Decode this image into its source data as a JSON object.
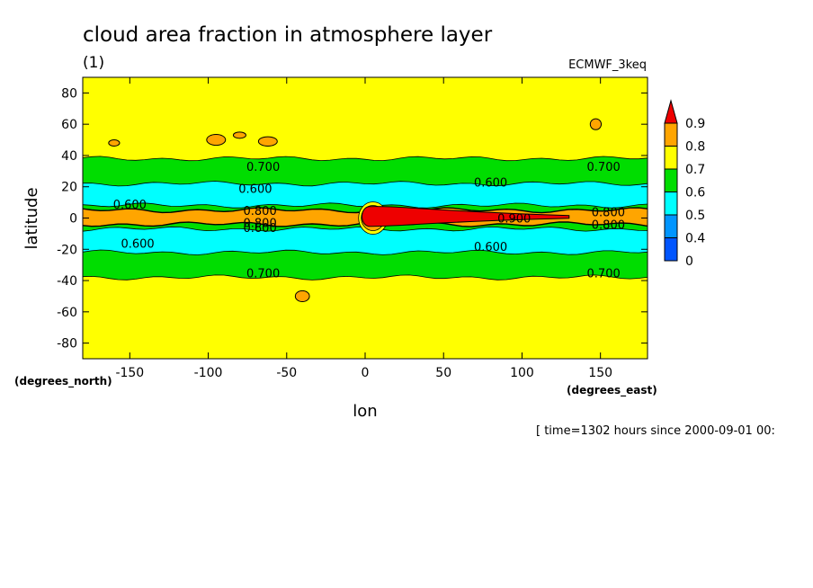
{
  "chart_data": {
    "type": "heatmap",
    "title": "cloud area fraction in atmosphere layer",
    "subtitle": "(1)",
    "source_label": "ECMWF_3keq",
    "xlabel": "lon",
    "ylabel": "latitude",
    "x_unit": "(degrees_east)",
    "y_unit": "(degrees_north)",
    "xlim": [
      -180,
      180
    ],
    "ylim": [
      -90,
      90
    ],
    "x_ticks": [
      {
        "value": -150,
        "label": "-150"
      },
      {
        "value": -100,
        "label": "-100"
      },
      {
        "value": -50,
        "label": "-50"
      },
      {
        "value": 0,
        "label": "0"
      },
      {
        "value": 50,
        "label": "50"
      },
      {
        "value": 100,
        "label": "100"
      },
      {
        "value": 150,
        "label": "150"
      }
    ],
    "y_ticks": [
      {
        "value": 80,
        "label": "80"
      },
      {
        "value": 60,
        "label": "60"
      },
      {
        "value": 40,
        "label": "40"
      },
      {
        "value": 20,
        "label": "20"
      },
      {
        "value": 0,
        "label": "0"
      },
      {
        "value": -20,
        "label": "-20"
      },
      {
        "value": -40,
        "label": "-40"
      },
      {
        "value": -60,
        "label": "-60"
      },
      {
        "value": -80,
        "label": "-80"
      }
    ],
    "time_note": "[ time=1302 hours since 2000-09-01 00:",
    "colorbar": [
      {
        "min": null,
        "max": 0.4,
        "color": "#0055ff"
      },
      {
        "min": 0.4,
        "max": 0.5,
        "color": "#0095ff"
      },
      {
        "min": 0.5,
        "max": 0.6,
        "color": "#00ffff"
      },
      {
        "min": 0.6,
        "max": 0.7,
        "color": "#00dd00"
      },
      {
        "min": 0.7,
        "max": 0.8,
        "color": "#ffff00"
      },
      {
        "min": 0.8,
        "max": 0.9,
        "color": "#ffa500"
      },
      {
        "min": 0.9,
        "max": null,
        "color": "#ee0000"
      }
    ],
    "colorbar_labels": [
      "0.9",
      "0.8",
      "0.7",
      "0.6",
      "0.5",
      "0.4",
      "0"
    ],
    "lat_bands": [
      {
        "lat_from": 90,
        "lat_to": 38,
        "value_range": "0.7-0.8",
        "color": "#ffff00"
      },
      {
        "lat_from": 38,
        "lat_to": 22,
        "value_range": "0.6-0.7",
        "color": "#00dd00"
      },
      {
        "lat_from": 22,
        "lat_to": 8,
        "value_range": "0.5-0.6",
        "color": "#00ffff"
      },
      {
        "lat_from": 8,
        "lat_to": 5,
        "value_range": "0.6-0.7",
        "color": "#00dd00"
      },
      {
        "lat_from": 5,
        "lat_to": -4,
        "value_range": "0.8-0.9",
        "color": "#ffa500"
      },
      {
        "lat_from": -4,
        "lat_to": -7,
        "value_range": "0.6-0.7",
        "color": "#00dd00"
      },
      {
        "lat_from": -7,
        "lat_to": -22,
        "value_range": "0.5-0.6",
        "color": "#00ffff"
      },
      {
        "lat_from": -22,
        "lat_to": -38,
        "value_range": "0.6-0.7",
        "color": "#00dd00"
      },
      {
        "lat_from": -38,
        "lat_to": -90,
        "value_range": "0.7-0.8",
        "color": "#ffff00"
      }
    ],
    "max_region": {
      "lon_from": 0,
      "lon_to": 130,
      "lat_center": 1,
      "value_range": ">0.9",
      "color": "#ee0000"
    },
    "contour_labels": [
      {
        "text": "0.700",
        "lon": -65,
        "lat": 33
      },
      {
        "text": "0.700",
        "lon": 152,
        "lat": 33
      },
      {
        "text": "0.600",
        "lon": -70,
        "lat": 19
      },
      {
        "text": "0.600",
        "lon": 80,
        "lat": 23
      },
      {
        "text": "0.600",
        "lon": -150,
        "lat": 9
      },
      {
        "text": "0.800",
        "lon": -67,
        "lat": 5
      },
      {
        "text": "0.800",
        "lon": -67,
        "lat": -3
      },
      {
        "text": "0.600",
        "lon": -67,
        "lat": -6
      },
      {
        "text": "0.800",
        "lon": 155,
        "lat": 4
      },
      {
        "text": "0.900",
        "lon": 95,
        "lat": 0
      },
      {
        "text": "0.800",
        "lon": 155,
        "lat": -4
      },
      {
        "text": "0.600",
        "lon": -145,
        "lat": -16
      },
      {
        "text": "0.600",
        "lon": 80,
        "lat": -18
      },
      {
        "text": "0.700",
        "lon": -65,
        "lat": -35
      },
      {
        "text": "0.700",
        "lon": 152,
        "lat": -35
      }
    ],
    "high_patches": [
      {
        "lon": -95,
        "lat": 50,
        "rx": 6,
        "ry": 3.5
      },
      {
        "lon": -80,
        "lat": 53,
        "rx": 4,
        "ry": 2
      },
      {
        "lon": -62,
        "lat": 49,
        "rx": 6,
        "ry": 3
      },
      {
        "lon": -160,
        "lat": 48,
        "rx": 3.5,
        "ry": 2
      },
      {
        "lon": 147,
        "lat": 60,
        "rx": 3.5,
        "ry": 3.5
      },
      {
        "lon": -40,
        "lat": -50,
        "rx": 4.5,
        "ry": 3.5
      }
    ],
    "grid": false
  }
}
